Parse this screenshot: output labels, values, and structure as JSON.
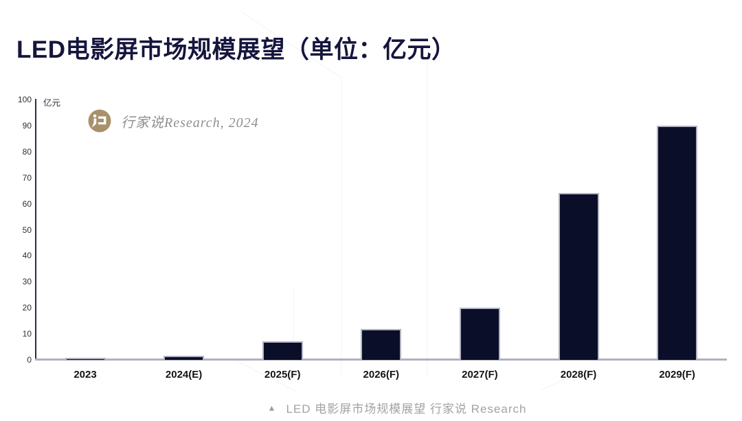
{
  "header": {
    "title": "LED电影屏市场规模展望（单位：亿元）",
    "title_color": "#15153d"
  },
  "watermark": {
    "brand_text": "行家说Research, 2024",
    "logo_icon": "hangjiashuo-logo",
    "logo_color": "#a8916a",
    "text_color": "#8f8f8f"
  },
  "caption": {
    "marker": "▲",
    "text": "LED 电影屏市场规模展望 行家说 Research",
    "color": "#a2a2a2"
  },
  "chart_data": {
    "type": "bar",
    "title": "LED电影屏市场规模展望（单位：亿元）",
    "unit_label": "亿元",
    "categories": [
      "2023",
      "2024(E)",
      "2025(F)",
      "2026(F)",
      "2027(F)",
      "2028(F)",
      "2029(F)"
    ],
    "values": [
      0.5,
      1.5,
      7,
      12,
      20,
      64,
      90
    ],
    "yticks": [
      0,
      10,
      20,
      30,
      40,
      50,
      60,
      70,
      80,
      90,
      100
    ],
    "ylim": [
      0,
      100
    ],
    "grid": false,
    "legend": null,
    "bar_color": "#0a0e28",
    "bar_border_color": "#b3b3c4",
    "axis_color": "#262b49",
    "baseline_color": "#b0b1bd",
    "tick_label_color": "#2f2f2f",
    "x_label_color": "#141414"
  }
}
